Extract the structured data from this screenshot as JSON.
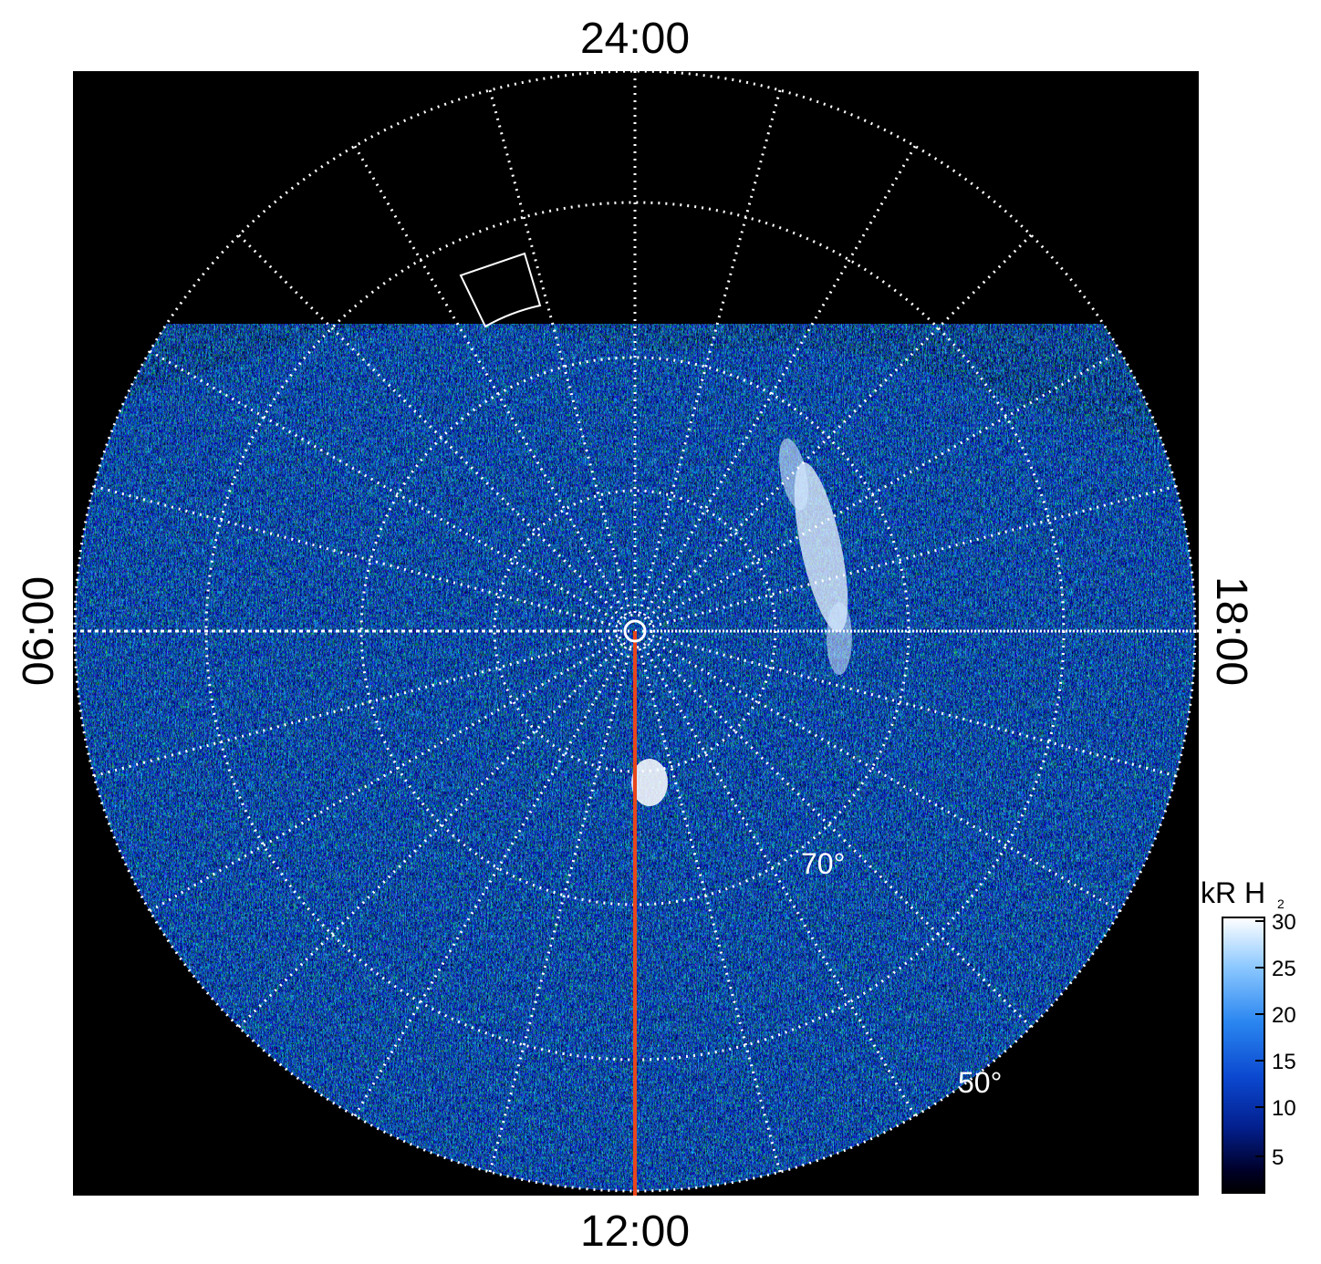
{
  "local_time_labels": {
    "top": "24:00",
    "bottom": "12:00",
    "left": "06:00",
    "right": "18:00"
  },
  "latitude_labels": {
    "inner": "70°",
    "outer": "50°"
  },
  "colorbar": {
    "title_main": "kR H",
    "title_sub": "2",
    "ticks": [
      "30",
      "25",
      "20",
      "15",
      "10",
      "5"
    ],
    "colors": [
      "#ffffff",
      "#6fb8ff",
      "#1e78e6",
      "#0a3cc8",
      "#02148c",
      "#000014",
      "#000000"
    ]
  },
  "colors": {
    "background": "#000000",
    "grid": "#ffffff",
    "meridian_line": "#e8451c"
  }
}
